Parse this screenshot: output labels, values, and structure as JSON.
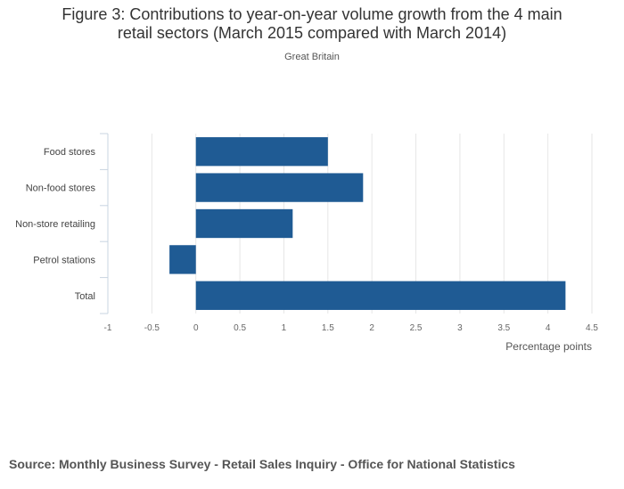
{
  "chart_data": {
    "type": "bar",
    "orientation": "horizontal",
    "title_lines": [
      "Figure 3: Contributions to year-on-year volume growth from the 4 main",
      "retail sectors (March 2015 compared with March 2014)"
    ],
    "subtitle": "Great Britain",
    "categories": [
      "Food stores",
      "Non-food stores",
      "Non-store retailing",
      "Petrol stations",
      "Total"
    ],
    "values": [
      1.5,
      1.9,
      1.1,
      -0.3,
      4.2
    ],
    "xlabel": "Percentage points",
    "xlim": [
      -1,
      4.5
    ],
    "xticks": [
      -1,
      -0.5,
      0,
      0.5,
      1,
      1.5,
      2,
      2.5,
      3,
      3.5,
      4,
      4.5
    ],
    "xtick_labels": [
      "-1",
      "-0.5",
      "0",
      "0.5",
      "1",
      "1.5",
      "2",
      "2.5",
      "3",
      "3.5",
      "4",
      "4.5"
    ],
    "grid": true,
    "bar_color": "#1f5b94",
    "grid_color": "#e6e6e6",
    "axis_color": "#c8d4e0"
  },
  "source": "Source: Monthly Business Survey - Retail Sales Inquiry - Office for National Statistics"
}
